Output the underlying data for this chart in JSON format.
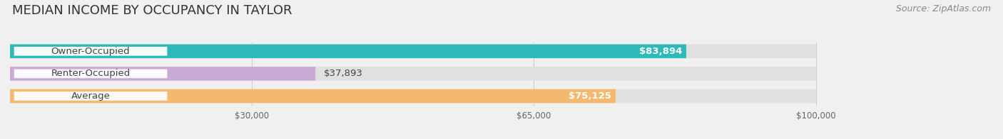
{
  "title": "MEDIAN INCOME BY OCCUPANCY IN TAYLOR",
  "source": "Source: ZipAtlas.com",
  "categories": [
    "Owner-Occupied",
    "Renter-Occupied",
    "Average"
  ],
  "values": [
    83894,
    37893,
    75125
  ],
  "labels": [
    "$83,894",
    "$37,893",
    "$75,125"
  ],
  "bar_colors": [
    "#2eb8b8",
    "#c9aad4",
    "#f5b96e"
  ],
  "xmax": 100000,
  "xticks": [
    30000,
    65000,
    100000
  ],
  "xtick_labels": [
    "$30,000",
    "$65,000",
    "$100,000"
  ],
  "background_color": "#f0f0f0",
  "bar_track_color": "#e0e0e0",
  "title_fontsize": 13,
  "source_fontsize": 9,
  "label_fontsize": 9.5,
  "value_fontsize": 9.5,
  "bar_height": 0.62,
  "figsize": [
    14.06,
    1.96
  ],
  "dpi": 100
}
